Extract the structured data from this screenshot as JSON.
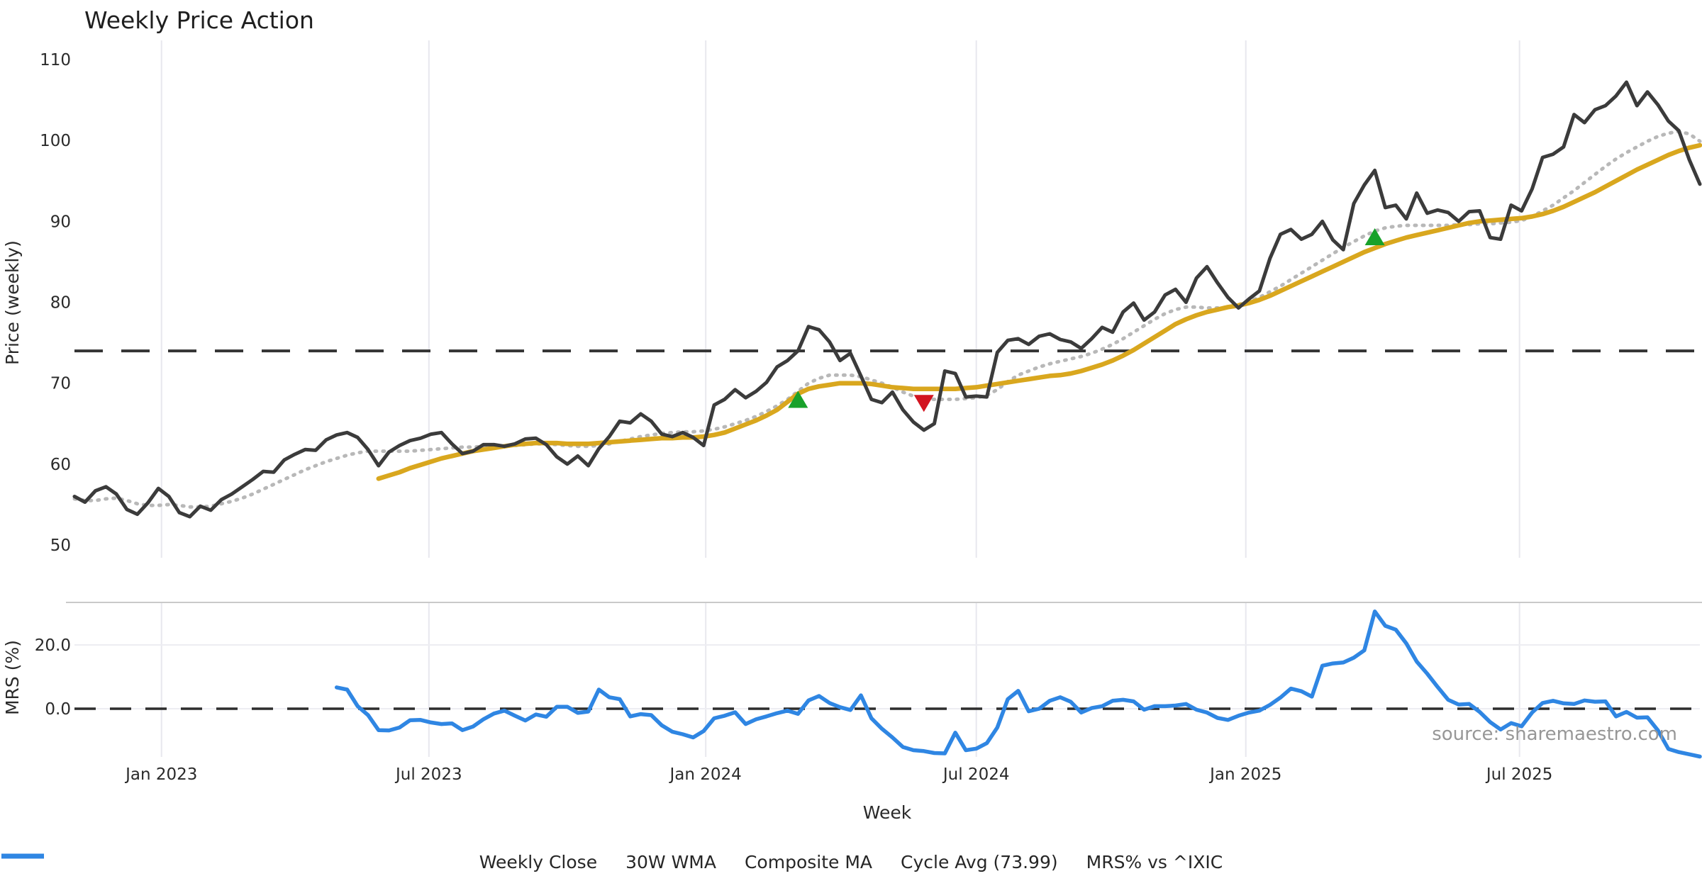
{
  "title": "Weekly Price Action",
  "source": "source: sharemaestro.com",
  "colors": {
    "close": "#3b3b3b",
    "wma": "#d9a71e",
    "composite": "#b8b8b8",
    "cycle": "#343434",
    "mrs": "#2f86e3",
    "buy": "#18a12a",
    "sell": "#d21420",
    "grid": "#e8e8ee",
    "separator": "#c9c9c9",
    "zero_line": "#2d2d2d"
  },
  "legend": [
    {
      "label": "Weekly Close",
      "style": "solid",
      "color": "#3b3b3b",
      "width": 6
    },
    {
      "label": "30W WMA",
      "style": "solid",
      "color": "#d9a71e",
      "width": 7
    },
    {
      "label": "Composite MA",
      "style": "dotted",
      "color": "#b8b8b8",
      "width": 5
    },
    {
      "label": "Cycle Avg (73.99)",
      "style": "dashed",
      "color": "#343434",
      "width": 5
    },
    {
      "label": "MRS% vs ^IXIC",
      "style": "solid",
      "color": "#2f86e3",
      "width": 7
    }
  ],
  "chart_data": {
    "type": "line",
    "xlabel": "Week",
    "total_weeks": 155,
    "x_ticks": [
      {
        "label": "Jan 2023",
        "week": 8.3
      },
      {
        "label": "Jul 2023",
        "week": 33.8
      },
      {
        "label": "Jan 2024",
        "week": 60.2
      },
      {
        "label": "Jul 2024",
        "week": 86.0
      },
      {
        "label": "Jan 2025",
        "week": 111.7
      },
      {
        "label": "Jul 2025",
        "week": 137.8
      }
    ],
    "panels": [
      {
        "name": "price",
        "ylabel": "Price (weekly)",
        "ylim": [
          47.5,
          112.5
        ],
        "yticks": [
          50,
          60,
          70,
          80,
          90,
          100,
          110
        ],
        "cycle_avg": 73.99,
        "series": [
          {
            "name": "Weekly Close",
            "start_week": 0,
            "values": [
              56.0,
              55.3,
              56.7,
              57.2,
              56.3,
              54.4,
              53.8,
              55.2,
              57.0,
              56.0,
              54.0,
              53.5,
              54.8,
              54.3,
              55.6,
              56.3,
              57.2,
              58.1,
              59.1,
              59.0,
              60.5,
              61.2,
              61.8,
              61.7,
              63.0,
              63.6,
              63.9,
              63.3,
              61.8,
              59.8,
              61.5,
              62.3,
              62.9,
              63.2,
              63.7,
              63.9,
              62.5,
              61.3,
              61.6,
              62.4,
              62.4,
              62.2,
              62.5,
              63.1,
              63.2,
              62.4,
              60.9,
              60.0,
              61.0,
              59.8,
              61.9,
              63.4,
              65.3,
              65.1,
              66.2,
              65.3,
              63.7,
              63.4,
              63.9,
              63.3,
              62.3,
              67.3,
              68.0,
              69.2,
              68.2,
              69.0,
              70.1,
              72.0,
              72.8,
              74.0,
              77.0,
              76.6,
              75.1,
              72.8,
              73.7,
              70.9,
              68.0,
              67.6,
              68.9,
              66.7,
              65.2,
              64.2,
              65.0,
              71.5,
              71.2,
              68.3,
              68.4,
              68.3,
              73.8,
              75.3,
              75.5,
              74.8,
              75.8,
              76.1,
              75.4,
              75.1,
              74.3,
              75.5,
              76.9,
              76.3,
              78.8,
              79.9,
              77.8,
              78.8,
              80.9,
              81.6,
              80.0,
              83.0,
              84.4,
              82.4,
              80.6,
              79.3,
              80.4,
              81.4,
              85.4,
              88.4,
              89.0,
              87.8,
              88.4,
              90.0,
              87.7,
              86.5,
              92.2,
              94.5,
              96.3,
              91.7,
              92.0,
              90.3,
              93.5,
              91.0,
              91.4,
              91.1,
              90.0,
              91.2,
              91.3,
              88.0,
              87.8,
              92.0,
              91.3,
              94.0,
              97.9,
              98.3,
              99.2,
              103.2,
              102.2,
              103.8,
              104.3,
              105.5,
              107.2,
              104.3,
              106.0,
              104.4,
              102.4,
              101.2,
              97.6,
              94.6
            ]
          },
          {
            "name": "30W WMA",
            "start_week": 29,
            "values": [
              58.2,
              58.6,
              59.0,
              59.5,
              59.9,
              60.3,
              60.7,
              61.0,
              61.3,
              61.6,
              61.8,
              62.0,
              62.2,
              62.4,
              62.5,
              62.6,
              62.6,
              62.6,
              62.5,
              62.5,
              62.5,
              62.6,
              62.7,
              62.8,
              62.9,
              63.0,
              63.1,
              63.2,
              63.2,
              63.3,
              63.3,
              63.4,
              63.6,
              63.9,
              64.4,
              64.9,
              65.4,
              66.0,
              66.7,
              67.7,
              68.7,
              69.3,
              69.6,
              69.8,
              70.0,
              70.0,
              70.0,
              69.9,
              69.7,
              69.5,
              69.4,
              69.3,
              69.3,
              69.3,
              69.3,
              69.3,
              69.4,
              69.5,
              69.7,
              69.9,
              70.1,
              70.3,
              70.5,
              70.7,
              70.9,
              71.0,
              71.2,
              71.5,
              71.9,
              72.3,
              72.8,
              73.4,
              74.1,
              74.9,
              75.7,
              76.5,
              77.3,
              77.9,
              78.4,
              78.8,
              79.1,
              79.4,
              79.6,
              79.9,
              80.3,
              80.8,
              81.4,
              82.0,
              82.6,
              83.2,
              83.8,
              84.4,
              85.0,
              85.6,
              86.2,
              86.7,
              87.2,
              87.6,
              88.0,
              88.3,
              88.6,
              88.9,
              89.2,
              89.5,
              89.8,
              90.0,
              90.1,
              90.2,
              90.3,
              90.4,
              90.6,
              90.9,
              91.3,
              91.8,
              92.4,
              93.0,
              93.6,
              94.3,
              95.0,
              95.7,
              96.4,
              97.0,
              97.6,
              98.2,
              98.7,
              99.1,
              99.4
            ]
          },
          {
            "name": "Composite MA",
            "start_week": 0,
            "values": [
              55.7,
              55.5,
              55.5,
              55.7,
              55.8,
              55.5,
              55.1,
              54.9,
              54.9,
              55.0,
              54.9,
              54.7,
              54.7,
              54.8,
              55.1,
              55.4,
              55.8,
              56.3,
              56.9,
              57.5,
              58.1,
              58.7,
              59.3,
              59.8,
              60.3,
              60.7,
              61.1,
              61.4,
              61.6,
              61.6,
              61.6,
              61.6,
              61.6,
              61.7,
              61.8,
              61.9,
              62.0,
              62.1,
              62.1,
              62.2,
              62.2,
              62.3,
              62.3,
              62.4,
              62.5,
              62.5,
              62.4,
              62.3,
              62.2,
              62.2,
              62.3,
              62.5,
              62.8,
              63.1,
              63.4,
              63.6,
              63.8,
              63.9,
              64.0,
              64.0,
              64.1,
              64.3,
              64.6,
              65.0,
              65.4,
              65.9,
              66.5,
              67.2,
              68.0,
              69.0,
              70.0,
              70.6,
              71.0,
              71.0,
              71.0,
              70.8,
              70.4,
              70.0,
              69.5,
              68.9,
              68.4,
              68.1,
              68.0,
              68.0,
              68.0,
              68.1,
              68.2,
              68.5,
              69.2,
              70.2,
              71.0,
              71.5,
              72.0,
              72.4,
              72.7,
              73.0,
              73.3,
              73.7,
              74.2,
              74.8,
              75.5,
              76.3,
              77.1,
              77.9,
              78.6,
              79.1,
              79.4,
              79.4,
              79.3,
              79.3,
              79.4,
              79.7,
              80.1,
              80.6,
              81.3,
              82.0,
              82.8,
              83.6,
              84.4,
              85.2,
              86.0,
              86.8,
              87.5,
              88.2,
              88.8,
              89.2,
              89.4,
              89.5,
              89.5,
              89.5,
              89.5,
              89.5,
              89.6,
              89.6,
              89.7,
              89.7,
              89.8,
              89.9,
              90.1,
              90.6,
              91.3,
              92.0,
              92.9,
              93.8,
              94.8,
              95.8,
              96.8,
              97.7,
              98.5,
              99.2,
              99.9,
              100.5,
              100.9,
              101.1,
              100.8,
              99.9
            ]
          }
        ],
        "markers": [
          {
            "type": "buy",
            "week": 69,
            "price": 68.0
          },
          {
            "type": "sell",
            "week": 81,
            "price": 67.5
          },
          {
            "type": "buy",
            "week": 124,
            "price": 88.1
          }
        ]
      },
      {
        "name": "mrs",
        "ylabel": "MRS (%)",
        "ylim": [
          -15,
          33.3
        ],
        "yticks": [
          {
            "label": "20.0",
            "value": 20
          },
          {
            "label": "0.0",
            "value": 0
          }
        ],
        "series": [
          {
            "name": "MRS% vs ^IXIC",
            "start_week": 25,
            "values": [
              6.7,
              6.0,
              0.8,
              -2.0,
              -6.7,
              -6.8,
              -5.9,
              -3.6,
              -3.5,
              -4.3,
              -4.8,
              -4.6,
              -6.7,
              -5.6,
              -3.3,
              -1.5,
              -0.6,
              -2.2,
              -3.7,
              -1.8,
              -2.5,
              0.6,
              0.6,
              -1.3,
              -0.9,
              6.0,
              3.6,
              3.0,
              -2.4,
              -1.7,
              -2.0,
              -5.2,
              -7.2,
              -8.0,
              -9.0,
              -7.0,
              -3.0,
              -2.2,
              -1.1,
              -4.8,
              -3.3,
              -2.4,
              -1.4,
              -0.6,
              -1.6,
              2.6,
              4.0,
              1.8,
              0.5,
              -0.4,
              4.2,
              -3.0,
              -6.3,
              -9.0,
              -12.0,
              -13.0,
              -13.3,
              -13.9,
              -14.0,
              -7.5,
              -13.0,
              -12.5,
              -10.8,
              -5.9,
              3.0,
              5.6,
              -0.8,
              0.0,
              2.5,
              3.6,
              2.2,
              -1.2,
              0.2,
              0.8,
              2.5,
              2.8,
              2.3,
              -0.3,
              0.8,
              0.8,
              1.0,
              1.5,
              -0.3,
              -1.2,
              -2.9,
              -3.5,
              -2.2,
              -1.2,
              -0.6,
              1.2,
              3.5,
              6.3,
              5.5,
              3.8,
              13.5,
              14.2,
              14.5,
              16.0,
              18.3,
              30.5,
              26.0,
              24.8,
              20.5,
              14.8,
              11.0,
              6.8,
              2.8,
              1.3,
              1.5,
              -1.0,
              -4.2,
              -6.5,
              -4.5,
              -5.5,
              -1.2,
              1.8,
              2.5,
              1.7,
              1.5,
              2.6,
              2.2,
              2.3,
              -2.4,
              -1.0,
              -2.8,
              -2.7,
              -6.8,
              -12.6,
              -13.6,
              -14.3,
              -15.0
            ]
          }
        ]
      }
    ]
  }
}
